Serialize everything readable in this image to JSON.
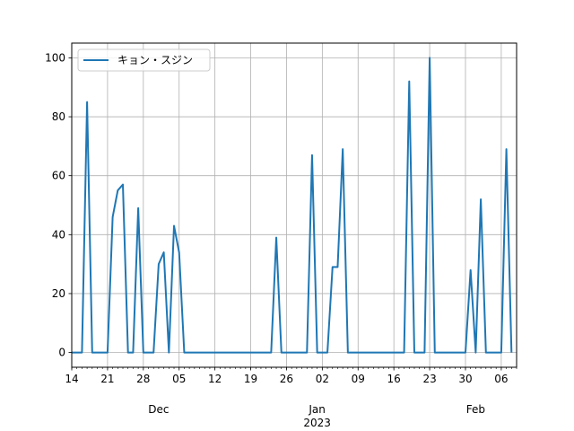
{
  "chart_data": {
    "type": "line",
    "title": "",
    "xlabel": "",
    "ylabel": "",
    "x_start": "2022-11-14",
    "x_end": "2023-02-09",
    "ylim": [
      -5,
      105
    ],
    "y_ticks": [
      0,
      20,
      40,
      60,
      80,
      100
    ],
    "x_ticks": [
      {
        "date": "2022-11-14",
        "label": "14"
      },
      {
        "date": "2022-11-21",
        "label": "21"
      },
      {
        "date": "2022-11-28",
        "label": "28"
      },
      {
        "date": "2022-12-05",
        "label": "05"
      },
      {
        "date": "2022-12-12",
        "label": "12"
      },
      {
        "date": "2022-12-19",
        "label": "19"
      },
      {
        "date": "2022-12-26",
        "label": "26"
      },
      {
        "date": "2023-01-02",
        "label": "02"
      },
      {
        "date": "2023-01-09",
        "label": "09"
      },
      {
        "date": "2023-01-16",
        "label": "16"
      },
      {
        "date": "2023-01-23",
        "label": "23"
      },
      {
        "date": "2023-01-30",
        "label": "30"
      },
      {
        "date": "2023-02-06",
        "label": "06"
      }
    ],
    "month_labels": [
      {
        "date": "2022-12-01",
        "label": "Dec"
      },
      {
        "date": "2023-01-01",
        "label": "Jan\n2023"
      },
      {
        "date": "2023-02-01",
        "label": "Feb"
      }
    ],
    "grid": true,
    "legend_position": "top-left",
    "series": [
      {
        "name": "キョン・スジン",
        "color": "#1f77b4",
        "points": [
          [
            "2022-11-14",
            0
          ],
          [
            "2022-11-15",
            0
          ],
          [
            "2022-11-16",
            0
          ],
          [
            "2022-11-17",
            85
          ],
          [
            "2022-11-18",
            0
          ],
          [
            "2022-11-19",
            0
          ],
          [
            "2022-11-20",
            0
          ],
          [
            "2022-11-21",
            0
          ],
          [
            "2022-11-22",
            46
          ],
          [
            "2022-11-23",
            55
          ],
          [
            "2022-11-24",
            57
          ],
          [
            "2022-11-25",
            0
          ],
          [
            "2022-11-26",
            0
          ],
          [
            "2022-11-27",
            49
          ],
          [
            "2022-11-28",
            0
          ],
          [
            "2022-11-29",
            0
          ],
          [
            "2022-11-30",
            0
          ],
          [
            "2022-12-01",
            30
          ],
          [
            "2022-12-02",
            34
          ],
          [
            "2022-12-03",
            0
          ],
          [
            "2022-12-04",
            43
          ],
          [
            "2022-12-05",
            34
          ],
          [
            "2022-12-06",
            0
          ],
          [
            "2022-12-07",
            0
          ],
          [
            "2022-12-08",
            0
          ],
          [
            "2022-12-09",
            0
          ],
          [
            "2022-12-10",
            0
          ],
          [
            "2022-12-11",
            0
          ],
          [
            "2022-12-12",
            0
          ],
          [
            "2022-12-13",
            0
          ],
          [
            "2022-12-14",
            0
          ],
          [
            "2022-12-15",
            0
          ],
          [
            "2022-12-16",
            0
          ],
          [
            "2022-12-17",
            0
          ],
          [
            "2022-12-18",
            0
          ],
          [
            "2022-12-19",
            0
          ],
          [
            "2022-12-20",
            0
          ],
          [
            "2022-12-21",
            0
          ],
          [
            "2022-12-22",
            0
          ],
          [
            "2022-12-23",
            0
          ],
          [
            "2022-12-24",
            39
          ],
          [
            "2022-12-25",
            0
          ],
          [
            "2022-12-26",
            0
          ],
          [
            "2022-12-27",
            0
          ],
          [
            "2022-12-28",
            0
          ],
          [
            "2022-12-29",
            0
          ],
          [
            "2022-12-30",
            0
          ],
          [
            "2022-12-31",
            67
          ],
          [
            "2023-01-01",
            0
          ],
          [
            "2023-01-02",
            0
          ],
          [
            "2023-01-03",
            0
          ],
          [
            "2023-01-04",
            29
          ],
          [
            "2023-01-05",
            29
          ],
          [
            "2023-01-06",
            69
          ],
          [
            "2023-01-07",
            0
          ],
          [
            "2023-01-08",
            0
          ],
          [
            "2023-01-09",
            0
          ],
          [
            "2023-01-10",
            0
          ],
          [
            "2023-01-11",
            0
          ],
          [
            "2023-01-12",
            0
          ],
          [
            "2023-01-13",
            0
          ],
          [
            "2023-01-14",
            0
          ],
          [
            "2023-01-15",
            0
          ],
          [
            "2023-01-16",
            0
          ],
          [
            "2023-01-17",
            0
          ],
          [
            "2023-01-18",
            0
          ],
          [
            "2023-01-19",
            92
          ],
          [
            "2023-01-20",
            0
          ],
          [
            "2023-01-21",
            0
          ],
          [
            "2023-01-22",
            0
          ],
          [
            "2023-01-23",
            100
          ],
          [
            "2023-01-24",
            0
          ],
          [
            "2023-01-25",
            0
          ],
          [
            "2023-01-26",
            0
          ],
          [
            "2023-01-27",
            0
          ],
          [
            "2023-01-28",
            0
          ],
          [
            "2023-01-29",
            0
          ],
          [
            "2023-01-30",
            0
          ],
          [
            "2023-01-31",
            28
          ],
          [
            "2023-02-01",
            0
          ],
          [
            "2023-02-02",
            52
          ],
          [
            "2023-02-03",
            0
          ],
          [
            "2023-02-04",
            0
          ],
          [
            "2023-02-05",
            0
          ],
          [
            "2023-02-06",
            0
          ],
          [
            "2023-02-07",
            69
          ],
          [
            "2023-02-08",
            0
          ]
        ]
      }
    ]
  }
}
